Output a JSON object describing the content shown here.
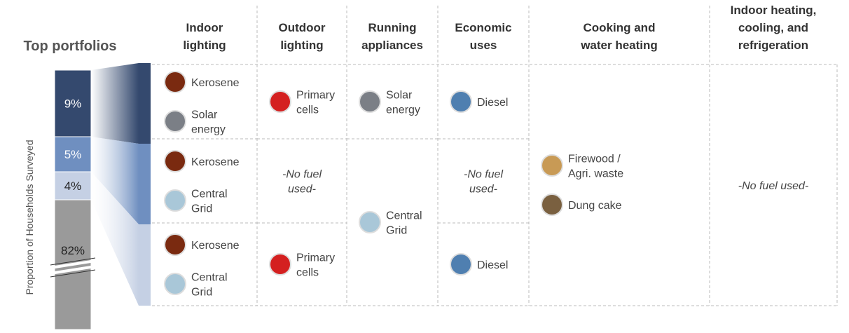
{
  "title": "Top portfolios",
  "y_axis_label": "Proportion of Households Surveyed",
  "shares": [
    {
      "label": "9%",
      "color": "#34496e"
    },
    {
      "label": "5%",
      "color": "#6f8fc0"
    },
    {
      "label": "4%",
      "color": "#c5d0e4"
    },
    {
      "label": "82%",
      "color": "#9a9a9a"
    }
  ],
  "columns": [
    {
      "header": [
        "Indoor",
        "lighting"
      ],
      "cells": [
        {
          "items": [
            {
              "label": [
                "Kerosene"
              ],
              "icon_color": "#7a2a10"
            },
            {
              "label": [
                "Solar",
                "energy"
              ],
              "icon_color": "#7b7f86"
            }
          ]
        },
        {
          "items": [
            {
              "label": [
                "Kerosene"
              ],
              "icon_color": "#7a2a10"
            },
            {
              "label": [
                "Central",
                "Grid"
              ],
              "icon_color": "#a9c7d8"
            }
          ]
        },
        {
          "items": [
            {
              "label": [
                "Kerosene"
              ],
              "icon_color": "#7a2a10"
            },
            {
              "label": [
                "Central",
                "Grid"
              ],
              "icon_color": "#a9c7d8"
            }
          ]
        }
      ]
    },
    {
      "header": [
        "Outdoor",
        "lighting"
      ],
      "cells": [
        {
          "items": [
            {
              "label": [
                "Primary",
                "cells"
              ],
              "icon_color": "#d42020"
            }
          ]
        },
        {
          "items": [
            {
              "label": [
                "-No fuel",
                "used-"
              ]
            }
          ]
        },
        {
          "items": [
            {
              "label": [
                "Primary",
                "cells"
              ],
              "icon_color": "#d42020"
            }
          ]
        }
      ]
    },
    {
      "header": [
        "Running",
        "appliances"
      ],
      "cells": [
        {
          "items": [
            {
              "label": [
                "Solar",
                "energy"
              ],
              "icon_color": "#7b7f86"
            }
          ]
        },
        {
          "items": [
            {
              "label": [
                "Central",
                "Grid"
              ],
              "icon_color": "#a9c7d8"
            }
          ]
        }
      ]
    },
    {
      "header": [
        "Economic",
        "uses"
      ],
      "cells": [
        {
          "items": [
            {
              "label": [
                "Diesel"
              ],
              "icon_color": "#4f7fb0"
            }
          ]
        },
        {
          "items": [
            {
              "label": [
                "-No fuel",
                "used-"
              ]
            }
          ]
        },
        {
          "items": [
            {
              "label": [
                "Diesel"
              ],
              "icon_color": "#4f7fb0"
            }
          ]
        }
      ]
    },
    {
      "header": [
        "Cooking and",
        "water heating"
      ],
      "cells": [
        {
          "items": [
            {
              "label": [
                "Firewood /",
                "Agri. waste"
              ],
              "icon_color": "#c89a55"
            },
            {
              "label": [
                "Dung cake"
              ],
              "icon_color": "#7a6040"
            }
          ]
        }
      ]
    },
    {
      "header": [
        "Indoor heating,",
        "cooling, and",
        "refrigeration"
      ],
      "cells": [
        {
          "items": [
            {
              "label": [
                "-No fuel used-"
              ]
            }
          ]
        }
      ]
    }
  ]
}
